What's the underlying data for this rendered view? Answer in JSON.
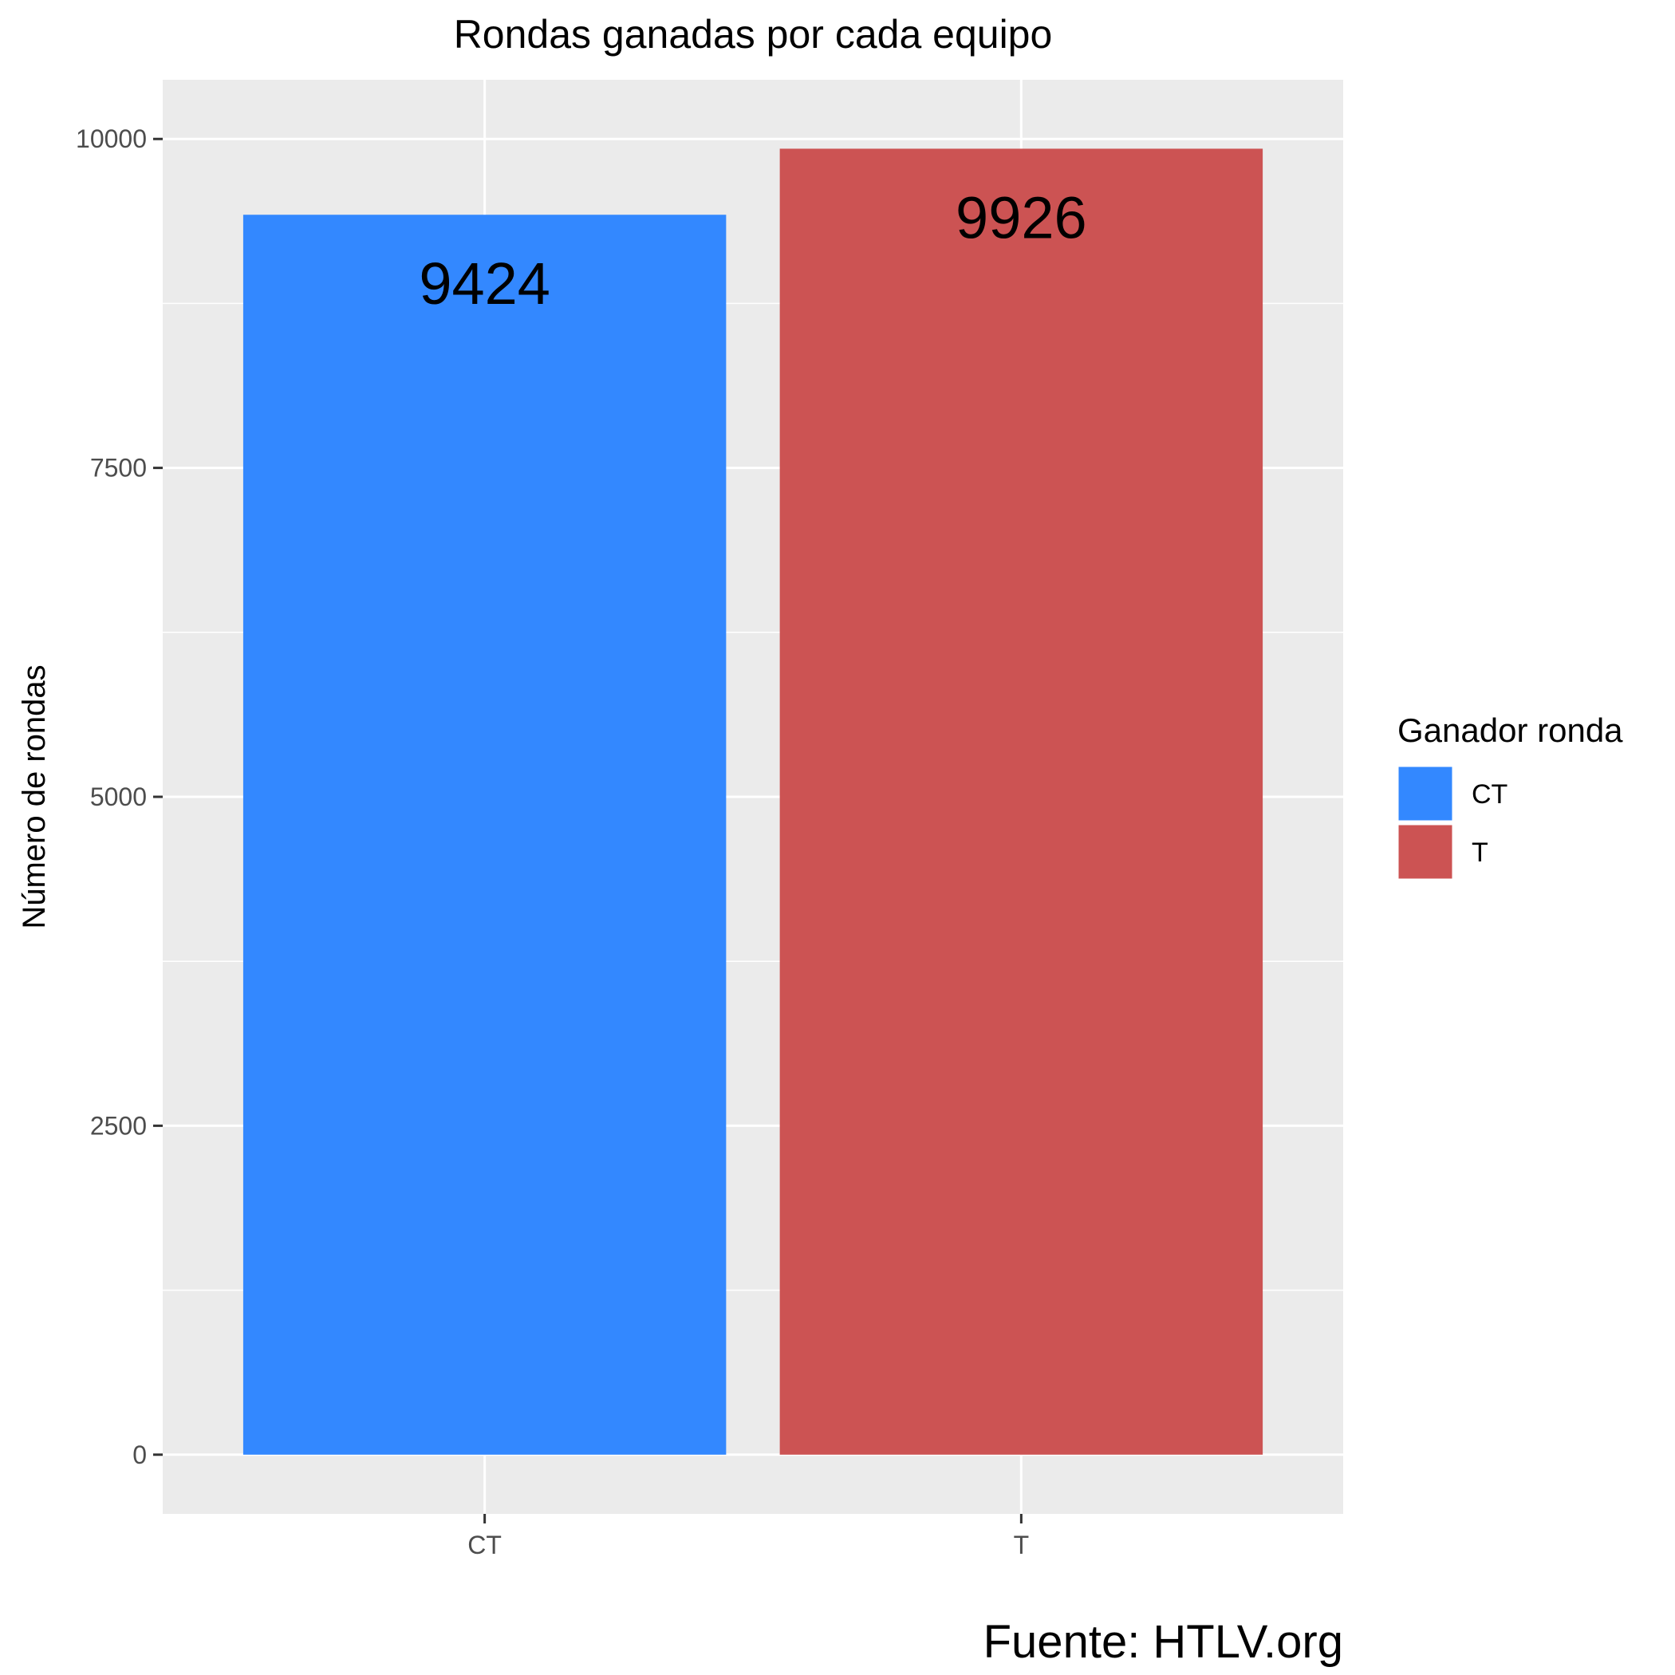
{
  "chart_data": {
    "type": "bar",
    "title": "Rondas ganadas por cada equipo",
    "xlabel": "",
    "ylabel": "Número de rondas",
    "categories": [
      "CT",
      "T"
    ],
    "values": [
      9424,
      9926
    ],
    "data_labels": [
      "9424",
      "9926"
    ],
    "colors": [
      "#3388ff",
      "#cc5353"
    ],
    "ylim": [
      -450,
      10450
    ],
    "yticks": [
      0,
      2500,
      5000,
      7500,
      10000
    ],
    "ytick_labels": [
      "0",
      "2500",
      "5000",
      "7500",
      "10000"
    ],
    "grid": true,
    "legend": {
      "title": "Ganador ronda",
      "placement": "right",
      "entries": [
        {
          "label": "CT",
          "color": "#3388ff"
        },
        {
          "label": "T",
          "color": "#cc5353"
        }
      ]
    },
    "caption": "Fuente: HTLV.org",
    "panel_background": "#ebebeb",
    "grid_color": "#ffffff"
  }
}
